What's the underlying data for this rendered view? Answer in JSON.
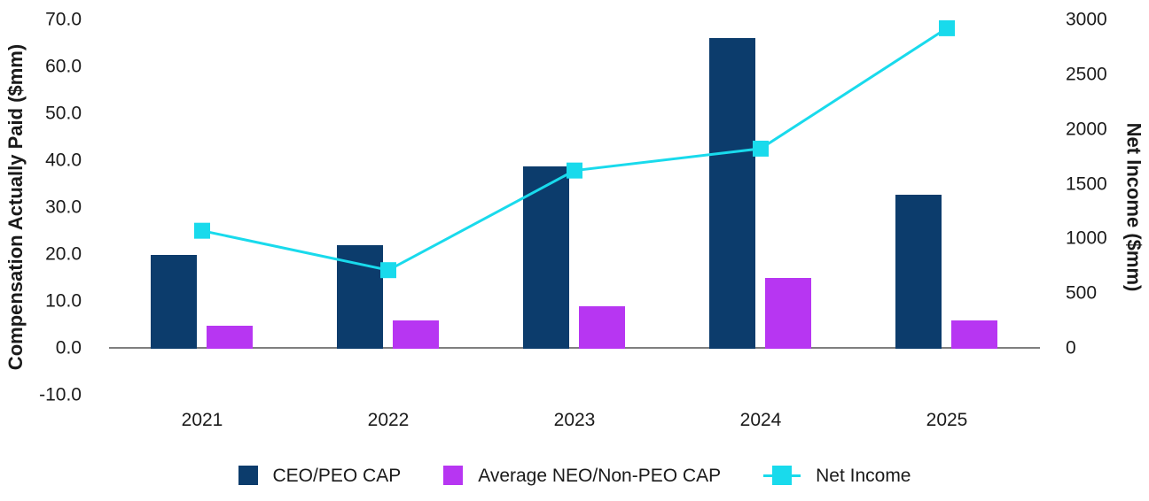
{
  "chart_data": {
    "type": "combo-bar-line",
    "categories": [
      "2021",
      "2022",
      "2023",
      "2024",
      "2025"
    ],
    "series": [
      {
        "name": "CEO/PEO CAP",
        "type": "bar",
        "axis": "left",
        "color": "#0c3c6c",
        "values": [
          19.8,
          21.8,
          38.7,
          66.0,
          32.6
        ]
      },
      {
        "name": "Average NEO/Non-PEO CAP",
        "type": "bar",
        "axis": "left",
        "color": "#b736f2",
        "values": [
          4.7,
          5.9,
          8.9,
          14.9,
          5.9
        ]
      },
      {
        "name": "Net Income",
        "type": "line",
        "axis": "right",
        "color": "#19daec",
        "marker": "square",
        "values": [
          1070,
          710,
          1620,
          1820,
          2920
        ]
      }
    ],
    "left_axis": {
      "title": "Compensation Actually Paid ($mm)",
      "ticks": [
        "70.0",
        "60.0",
        "50.0",
        "40.0",
        "30.0",
        "20.0",
        "10.0",
        "0.0",
        "-10.0"
      ],
      "min": -10,
      "max": 70
    },
    "right_axis": {
      "title": "Net Income ($mm)",
      "ticks": [
        "3000",
        "2500",
        "2000",
        "1500",
        "1000",
        "500",
        "0"
      ],
      "min": 0,
      "max": 3000
    },
    "legend_position": "bottom",
    "grid": false,
    "colors": {
      "baseline": "#7f7f7f",
      "text": "#1a1a1a",
      "background": "#ffffff"
    }
  }
}
